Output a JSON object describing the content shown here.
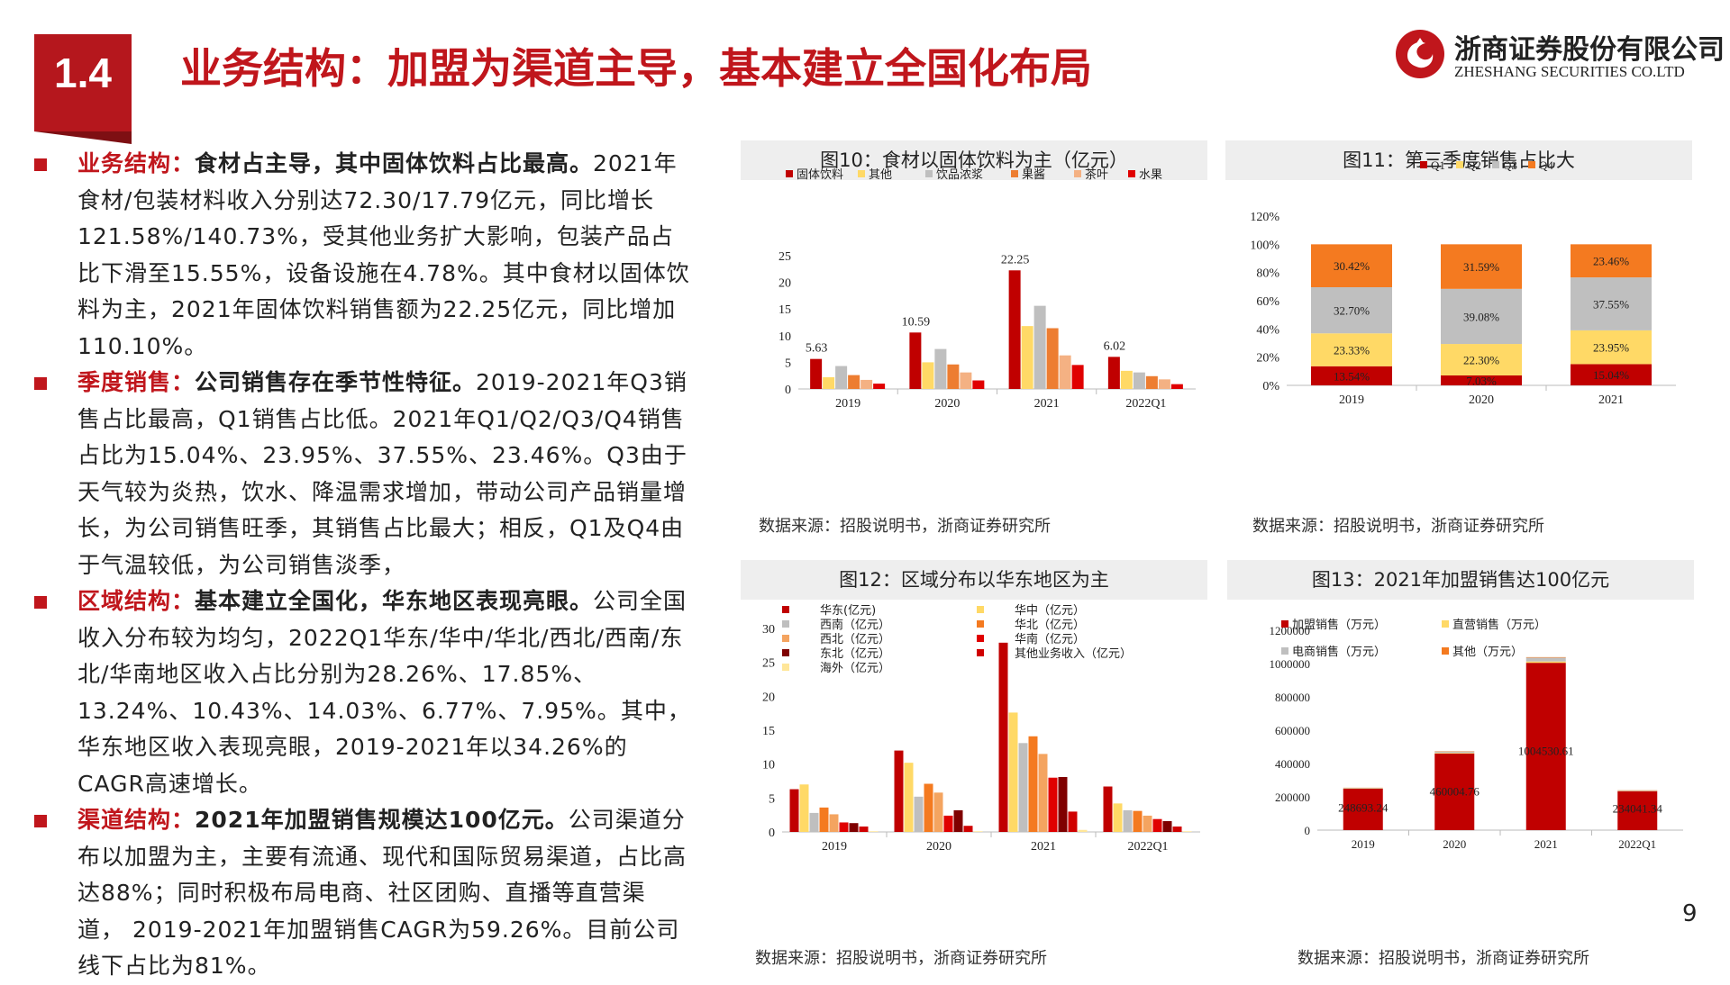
{
  "header": {
    "section_number": "1.4",
    "title": "业务结构：加盟为渠道主导，基本建立全国化布局",
    "logo_cn": "浙商证券股份有限公司",
    "logo_en": "ZHESHANG SECURITIES CO.LTD"
  },
  "bullets": [
    {
      "keyword": "业务结构：",
      "highlight": "食材占主导，其中固体饮料占比最高。",
      "body": "2021年食材/包装材料收入分别达72.30/17.79亿元，同比增长121.58%/140.73%，受其他业务扩大影响，包装产品占比下滑至15.55%，设备设施在4.78%。其中食材以固体饮料为主，2021年固体饮料销售额为22.25亿元，同比增加110.10%。"
    },
    {
      "keyword": "季度销售：",
      "highlight": "公司销售存在季节性特征。",
      "body": "2019-2021年Q3销售占比最高，Q1销售占比低。2021年Q1/Q2/Q3/Q4销售占比为15.04%、23.95%、37.55%、23.46%。Q3由于天气较为炎热，饮水、降温需求增加，带动公司产品销量增长，为公司销售旺季，其销售占比最大；相反，Q1及Q4由于气温较低，为公司销售淡季，"
    },
    {
      "keyword": "区域结构：",
      "highlight": "基本建立全国化，华东地区表现亮眼。",
      "body": "公司全国收入分布较为均匀，2022Q1华东/华中/华北/西北/西南/东北/华南地区收入占比分别为28.26%、17.85%、13.24%、10.43%、14.03%、6.77%、7.95%。其中，华东地区收入表现亮眼，2019-2021年以34.26%的CAGR高速增长。"
    },
    {
      "keyword": "渠道结构：",
      "highlight": "2021年加盟销售规模达100亿元。",
      "body": "公司渠道分布以加盟为主，主要有流通、现代和国际贸易渠道，占比高达88%；同时积极布局电商、社区团购、直播等直营渠道， 2019-2021年加盟销售CAGR为59.26%。目前公司线下占比为81%。"
    }
  ],
  "source_text": "数据来源：招股说明书，浙商证券研究所",
  "page_number": "9",
  "chart_data": [
    {
      "id": "fig10",
      "type": "bar",
      "title": "图10：食材以固体饮料为主（亿元）",
      "categories": [
        "2019",
        "2020",
        "2021",
        "2022Q1"
      ],
      "ylim": [
        0,
        25
      ],
      "yticks": [
        0,
        5,
        10,
        15,
        20,
        25
      ],
      "series": [
        {
          "name": "固体饮料",
          "color": "#c00000",
          "values": [
            5.63,
            10.59,
            22.25,
            6.02
          ],
          "labels": [
            "5.63",
            "10.59",
            "22.25",
            "6.02"
          ]
        },
        {
          "name": "其他",
          "color": "#ffd966",
          "values": [
            2.2,
            5.0,
            11.8,
            3.4
          ]
        },
        {
          "name": "饮品浓浆",
          "color": "#bfbfbf",
          "values": [
            4.3,
            7.5,
            15.6,
            3.1
          ]
        },
        {
          "name": "果酱",
          "color": "#ed7d31",
          "values": [
            2.6,
            4.6,
            11.4,
            2.4
          ]
        },
        {
          "name": "茶叶",
          "color": "#f4b183",
          "values": [
            1.7,
            3.1,
            6.3,
            1.8
          ]
        },
        {
          "name": "水果",
          "color": "#e00000",
          "values": [
            1.0,
            1.6,
            4.5,
            0.9
          ]
        }
      ]
    },
    {
      "id": "fig11",
      "type": "bar",
      "stacked": true,
      "title": "图11：第三季度销售占比大",
      "categories": [
        "2019",
        "2020",
        "2021"
      ],
      "ylim": [
        0,
        120
      ],
      "yticks": [
        0,
        20,
        40,
        60,
        80,
        100,
        120
      ],
      "tick_suffix": "%",
      "series": [
        {
          "name": "Q1",
          "color": "#c00000",
          "values": [
            13.54,
            7.03,
            15.04
          ],
          "labels": [
            "13.54%",
            "7.03%",
            "15.04%"
          ]
        },
        {
          "name": "Q2",
          "color": "#ffd966",
          "values": [
            23.33,
            22.3,
            23.95
          ],
          "labels": [
            "23.33%",
            "22.30%",
            "23.95%"
          ]
        },
        {
          "name": "Q3",
          "color": "#bfbfbf",
          "values": [
            32.7,
            39.08,
            37.55
          ],
          "labels": [
            "32.70%",
            "39.08%",
            "37.55%"
          ]
        },
        {
          "name": "Q4",
          "color": "#f47a20",
          "values": [
            30.42,
            31.59,
            23.46
          ],
          "labels": [
            "30.42%",
            "31.59%",
            "23.46%"
          ]
        }
      ]
    },
    {
      "id": "fig12",
      "type": "bar",
      "title": "图12：区域分布以华东地区为主",
      "categories": [
        "2019",
        "2020",
        "2021",
        "2022Q1"
      ],
      "ylim": [
        0,
        30
      ],
      "yticks": [
        0,
        5,
        10,
        15,
        20,
        25,
        30
      ],
      "series": [
        {
          "name": "华东(亿元)",
          "color": "#c00000",
          "values": [
            6.3,
            12.0,
            27.9,
            6.7
          ]
        },
        {
          "name": "华中（亿元）",
          "color": "#ffd966",
          "values": [
            7.0,
            10.2,
            17.6,
            4.2
          ]
        },
        {
          "name": "西南（亿元）",
          "color": "#bfbfbf",
          "values": [
            2.8,
            5.2,
            13.1,
            3.2
          ]
        },
        {
          "name": "华北（亿元）",
          "color": "#f47a20",
          "values": [
            3.6,
            7.1,
            14.1,
            3.1
          ]
        },
        {
          "name": "西北（亿元）",
          "color": "#f4a460",
          "values": [
            2.6,
            5.8,
            11.5,
            2.4
          ]
        },
        {
          "name": "华南（亿元）",
          "color": "#e00000",
          "values": [
            1.4,
            2.4,
            8.0,
            1.9
          ]
        },
        {
          "name": "东北（亿元）",
          "color": "#7f0000",
          "values": [
            1.3,
            3.2,
            8.1,
            1.6
          ]
        },
        {
          "name": "其他业务收入（亿元）",
          "color": "#d00000",
          "values": [
            0.8,
            0.9,
            3.0,
            0.8
          ]
        },
        {
          "name": "海外（亿元）",
          "color": "#ffe699",
          "values": [
            0.1,
            0.1,
            0.3,
            0.1
          ]
        }
      ]
    },
    {
      "id": "fig13",
      "type": "bar",
      "stacked": true,
      "title": "图13：2021年加盟销售达100亿元",
      "categories": [
        "2019",
        "2020",
        "2021",
        "2022Q1"
      ],
      "ylim": [
        0,
        1200000
      ],
      "yticks": [
        0,
        200000,
        400000,
        600000,
        800000,
        1000000,
        1200000
      ],
      "series": [
        {
          "name": "加盟销售（万元）",
          "color": "#c00000",
          "values": [
            248693.24,
            460004.76,
            1004530.61,
            234041.34
          ],
          "labels": [
            "248693.24",
            "460004.76",
            "1004530.61",
            "234041.34"
          ]
        },
        {
          "name": "直营销售（万元）",
          "color": "#ffd966",
          "values": [
            2000,
            4000,
            8000,
            2000
          ]
        },
        {
          "name": "电商销售（万元）",
          "color": "#bfbfbf",
          "values": [
            3000,
            8000,
            23000,
            3000
          ]
        },
        {
          "name": "其他（万元）",
          "color": "#f47a20",
          "values": [
            1000,
            2000,
            3000,
            1000
          ]
        }
      ]
    }
  ]
}
